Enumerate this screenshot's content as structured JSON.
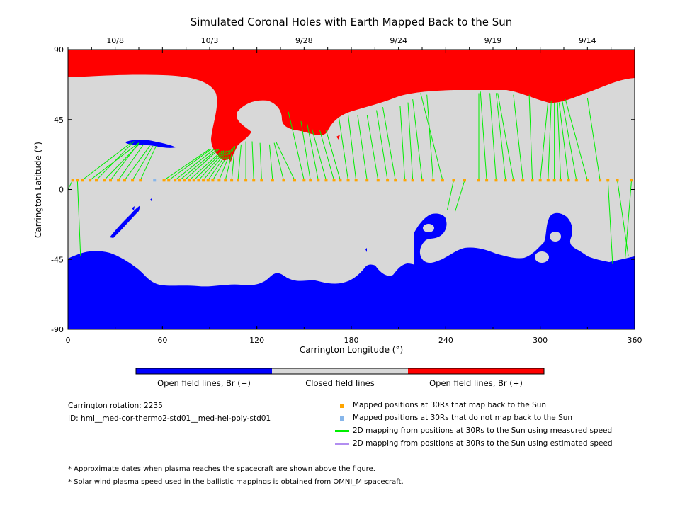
{
  "chart_data": {
    "type": "map",
    "title": "Simulated Coronal Holes with Earth Mapped Back to the Sun",
    "xlabel": "Carrington Longitude (°)",
    "ylabel": "Carrington Latitude (°)",
    "xlim": [
      0,
      360
    ],
    "ylim": [
      -90,
      90
    ],
    "x_ticks": [
      "0",
      "60",
      "120",
      "180",
      "240",
      "300",
      "360"
    ],
    "y_ticks": [
      "90",
      "45",
      "0",
      "-45",
      "-90"
    ],
    "top_axis_dates": [
      {
        "label": "10/8",
        "lon": 30
      },
      {
        "label": "10/3",
        "lon": 90
      },
      {
        "label": "9/28",
        "lon": 150
      },
      {
        "label": "9/24",
        "lon": 210
      },
      {
        "label": "9/19",
        "lon": 270
      },
      {
        "label": "9/14",
        "lon": 330
      }
    ],
    "colors": {
      "open_negative": "#0000ff",
      "closed": "#d8d8d8",
      "open_positive": "#ff0000",
      "mapped_back": "#ffa500",
      "not_mapped": "#87b6ea",
      "measured_speed": "#00ee00",
      "estimated_speed": "#b28ef0"
    },
    "mapped_latitude": 6,
    "mappings": [
      {
        "from": 3,
        "to": [
          -2,
          -4
        ]
      },
      {
        "from": 6,
        "to": [
          8,
          -43
        ]
      },
      {
        "from": 9,
        "to": [
          40,
          30
        ]
      },
      {
        "from": 14,
        "to": [
          45,
          30
        ]
      },
      {
        "from": 18,
        "to": [
          42,
          31
        ]
      },
      {
        "from": 23,
        "to": [
          45,
          29
        ]
      },
      {
        "from": 27,
        "to": [
          45,
          30
        ]
      },
      {
        "from": 32,
        "to": [
          48,
          29
        ]
      },
      {
        "from": 36,
        "to": [
          52,
          28
        ]
      },
      {
        "from": 41,
        "to": [
          54,
          28
        ]
      },
      {
        "from": 46,
        "to": [
          56,
          28
        ]
      },
      {
        "from": 61,
        "to": [
          90,
          26
        ]
      },
      {
        "from": 64,
        "to": [
          91,
          26
        ]
      },
      {
        "from": 68,
        "to": [
          93,
          26
        ]
      },
      {
        "from": 71,
        "to": [
          95,
          26
        ]
      },
      {
        "from": 74,
        "to": [
          96,
          26
        ]
      },
      {
        "from": 77,
        "to": [
          98,
          25
        ]
      },
      {
        "from": 80,
        "to": [
          99,
          25
        ]
      },
      {
        "from": 83,
        "to": [
          100,
          25
        ]
      },
      {
        "from": 86,
        "to": [
          101,
          25
        ]
      },
      {
        "from": 89,
        "to": [
          102,
          25
        ]
      },
      {
        "from": 92,
        "to": [
          103,
          25
        ]
      },
      {
        "from": 96,
        "to": [
          104,
          26
        ]
      },
      {
        "from": 100,
        "to": [
          105,
          27
        ]
      },
      {
        "from": 104,
        "to": [
          106,
          28
        ]
      },
      {
        "from": 108,
        "to": [
          110,
          29
        ]
      },
      {
        "from": 113,
        "to": [
          113,
          31
        ]
      },
      {
        "from": 118,
        "to": [
          117,
          31
        ]
      },
      {
        "from": 123,
        "to": [
          122,
          30
        ]
      },
      {
        "from": 130,
        "to": [
          128,
          29
        ]
      },
      {
        "from": 137,
        "to": [
          131,
          30
        ]
      },
      {
        "from": 144,
        "to": [
          132,
          31
        ]
      },
      {
        "from": 150,
        "to": [
          140,
          50
        ]
      },
      {
        "from": 154,
        "to": [
          148,
          44
        ]
      },
      {
        "from": 159,
        "to": [
          152,
          42
        ]
      },
      {
        "from": 164,
        "to": [
          155,
          39
        ]
      },
      {
        "from": 169,
        "to": [
          160,
          38
        ]
      },
      {
        "from": 173,
        "to": [
          164,
          38
        ]
      },
      {
        "from": 178,
        "to": [
          172,
          47
        ]
      },
      {
        "from": 183,
        "to": [
          178,
          48
        ]
      },
      {
        "from": 190,
        "to": [
          184,
          48
        ]
      },
      {
        "from": 197,
        "to": [
          190,
          48
        ]
      },
      {
        "from": 203,
        "to": [
          196,
          51
        ]
      },
      {
        "from": 208,
        "to": [
          200,
          53
        ]
      },
      {
        "from": 214,
        "to": [
          211,
          54
        ]
      },
      {
        "from": 219,
        "to": [
          216,
          56
        ]
      },
      {
        "from": 225,
        "to": [
          219,
          58
        ]
      },
      {
        "from": 232,
        "to": [
          228,
          61
        ]
      },
      {
        "from": 238,
        "to": [
          224,
          62
        ]
      },
      {
        "from": 245,
        "to": [
          241,
          -13
        ]
      },
      {
        "from": 252,
        "to": [
          246,
          -14
        ]
      },
      {
        "from": 261,
        "to": [
          261,
          62
        ]
      },
      {
        "from": 266,
        "to": [
          262,
          63
        ]
      },
      {
        "from": 272,
        "to": [
          268,
          62
        ]
      },
      {
        "from": 278,
        "to": [
          272,
          62
        ]
      },
      {
        "from": 283,
        "to": [
          273,
          62
        ]
      },
      {
        "from": 289,
        "to": [
          283,
          61
        ]
      },
      {
        "from": 295,
        "to": [
          293,
          61
        ]
      },
      {
        "from": 300,
        "to": [
          305,
          57
        ]
      },
      {
        "from": 305,
        "to": [
          307,
          57
        ]
      },
      {
        "from": 309,
        "to": [
          309,
          56
        ]
      },
      {
        "from": 313,
        "to": [
          311,
          56
        ]
      },
      {
        "from": 318,
        "to": [
          312,
          56
        ]
      },
      {
        "from": 323,
        "to": [
          314,
          57
        ]
      },
      {
        "from": 330,
        "to": [
          316,
          58
        ]
      },
      {
        "from": 338,
        "to": [
          330,
          59
        ]
      },
      {
        "from": 343,
        "to": [
          346,
          -48
        ]
      },
      {
        "from": 349,
        "to": [
          356,
          -43
        ]
      },
      {
        "from": 358,
        "to": [
          354,
          -44
        ]
      }
    ],
    "unmapped_longitudes": [
      55
    ],
    "colorbar_labels": [
      "Open field lines, Br (−)",
      "Closed field lines",
      "Open field lines, Br (+)"
    ]
  },
  "info": {
    "rotation": "Carrington rotation: 2235",
    "id": "ID: hmi__med-cor-thermo2-std01__med-hel-poly-std01"
  },
  "legend": [
    {
      "label": "Mapped positions at 30Rs that map back to the Sun",
      "kind": "square",
      "color": "#ffa500"
    },
    {
      "label": "Mapped positions at 30Rs that do not map back to the Sun",
      "kind": "square",
      "color": "#87b6ea"
    },
    {
      "label": "2D mapping from positions at 30Rs to the Sun using measured speed",
      "kind": "line",
      "color": "#00ee00"
    },
    {
      "label": "2D mapping from positions at 30Rs to the Sun using estimated speed",
      "kind": "line",
      "color": "#b28ef0"
    }
  ],
  "notes": [
    "* Approximate dates when plasma reaches the spacecraft are shown above the figure.",
    "* Solar wind plasma speed used in the ballistic mappings is obtained from OMNI_M spacecraft."
  ]
}
